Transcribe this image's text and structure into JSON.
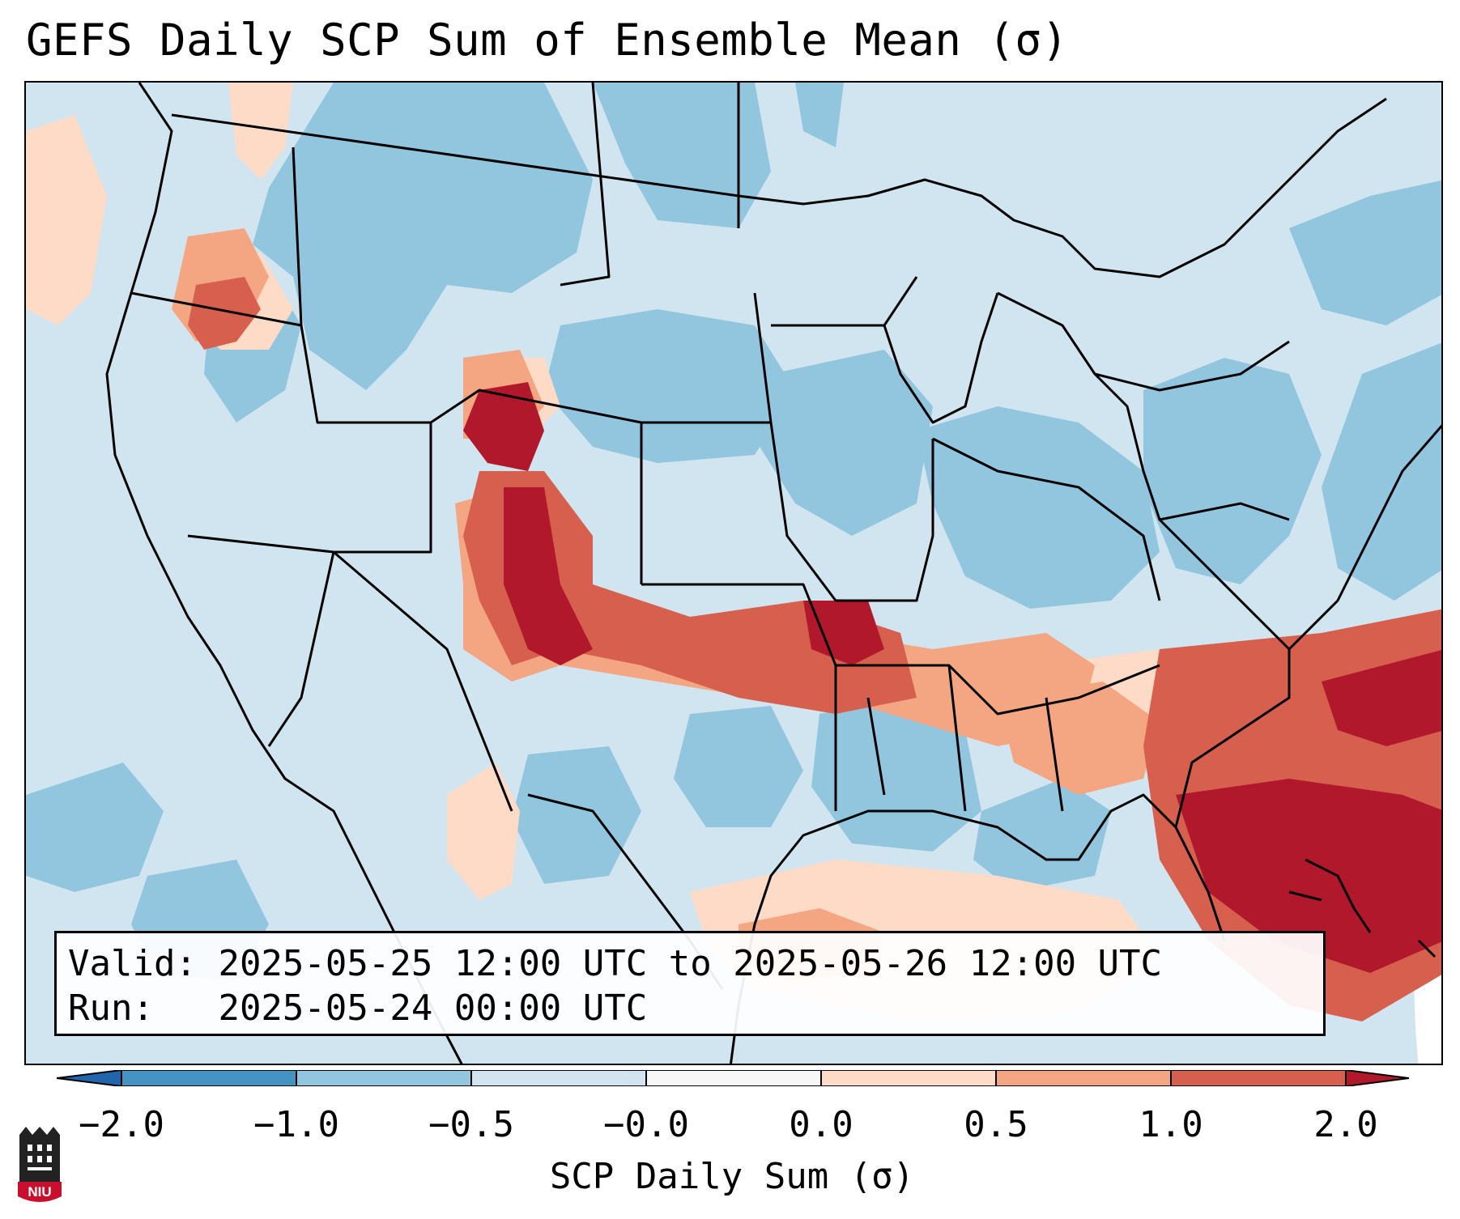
{
  "title": "GEFS Daily SCP Sum of Ensemble Mean (σ)",
  "info": {
    "valid_label": "Valid:",
    "valid_value": "2025-05-25 12:00 UTC to 2025-05-26 12:00 UTC",
    "run_label": "Run:",
    "run_value": "2025-05-24 00:00 UTC"
  },
  "colorbar": {
    "label": "SCP Daily Sum (σ)",
    "ticks": [
      "−2.0",
      "−1.0",
      "−0.5",
      "−0.0",
      "0.0",
      "0.5",
      "1.0",
      "2.0"
    ],
    "colors": [
      "#4393c3",
      "#92c5de",
      "#d1e5f0",
      "#f7f7f7",
      "#fddbc7",
      "#f4a582",
      "#d6604d",
      "#b2182b"
    ],
    "under_color": "#2166ac",
    "over_color": "#b2182b"
  },
  "logo": {
    "text": "NIU",
    "color": "#c8102e"
  }
}
